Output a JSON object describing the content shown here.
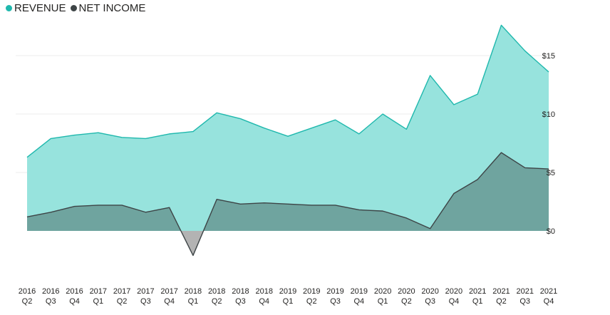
{
  "chart_data": {
    "type": "area",
    "title": "",
    "xlabel": "",
    "ylabel": "",
    "legend_position": "top-left",
    "grid": true,
    "ylim": [
      -2.5,
      18
    ],
    "y_ticks": [
      {
        "value": 0,
        "label": "$0"
      },
      {
        "value": 5,
        "label": "$5"
      },
      {
        "value": 10,
        "label": "$10"
      },
      {
        "value": 15,
        "label": "$15"
      }
    ],
    "categories": [
      {
        "year": "2016",
        "quarter": "Q2"
      },
      {
        "year": "2016",
        "quarter": "Q3"
      },
      {
        "year": "2016",
        "quarter": "Q4"
      },
      {
        "year": "2017",
        "quarter": "Q1"
      },
      {
        "year": "2017",
        "quarter": "Q2"
      },
      {
        "year": "2017",
        "quarter": "Q3"
      },
      {
        "year": "2017",
        "quarter": "Q4"
      },
      {
        "year": "2018",
        "quarter": "Q1"
      },
      {
        "year": "2018",
        "quarter": "Q2"
      },
      {
        "year": "2018",
        "quarter": "Q3"
      },
      {
        "year": "2018",
        "quarter": "Q4"
      },
      {
        "year": "2019",
        "quarter": "Q1"
      },
      {
        "year": "2019",
        "quarter": "Q2"
      },
      {
        "year": "2019",
        "quarter": "Q3"
      },
      {
        "year": "2019",
        "quarter": "Q4"
      },
      {
        "year": "2020",
        "quarter": "Q1"
      },
      {
        "year": "2020",
        "quarter": "Q2"
      },
      {
        "year": "2020",
        "quarter": "Q3"
      },
      {
        "year": "2020",
        "quarter": "Q4"
      },
      {
        "year": "2021",
        "quarter": "Q1"
      },
      {
        "year": "2021",
        "quarter": "Q2"
      },
      {
        "year": "2021",
        "quarter": "Q3"
      },
      {
        "year": "2021",
        "quarter": "Q4"
      }
    ],
    "series": [
      {
        "name": "REVENUE",
        "line_color": "#1fb8ad",
        "fill_color": "#97e3dd",
        "values": [
          6.3,
          7.9,
          8.2,
          8.4,
          8.0,
          7.9,
          8.3,
          8.5,
          10.1,
          9.6,
          8.8,
          8.1,
          8.8,
          9.5,
          8.3,
          10.0,
          8.7,
          13.3,
          10.8,
          11.7,
          17.6,
          15.4,
          13.6
        ]
      },
      {
        "name": "NET INCOME",
        "line_color": "#3d4446",
        "fill_color": "#6fa49f",
        "negative_fill_color": "#b3b3b3",
        "values": [
          1.2,
          1.6,
          2.1,
          2.2,
          2.2,
          1.6,
          2.0,
          -2.1,
          2.7,
          2.3,
          2.4,
          2.3,
          2.2,
          2.2,
          1.8,
          1.7,
          1.1,
          0.2,
          3.2,
          4.4,
          6.7,
          5.4,
          5.3
        ]
      }
    ]
  }
}
